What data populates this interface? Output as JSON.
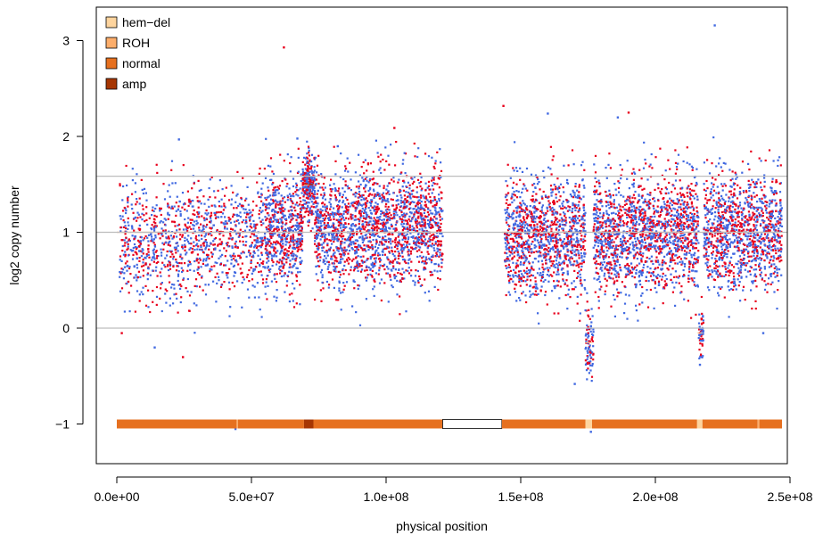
{
  "chart_data": {
    "type": "scatter",
    "xlabel": "physical position",
    "ylabel": "log2 copy number",
    "xlim": [
      0,
      250000000
    ],
    "ylim": [
      -1.2,
      3.3
    ],
    "x_ticks": [
      {
        "value": 0,
        "label": "0.0e+00"
      },
      {
        "value": 50000000,
        "label": "5.0e+07"
      },
      {
        "value": 100000000,
        "label": "1.0e+08"
      },
      {
        "value": 150000000,
        "label": "1.5e+08"
      },
      {
        "value": 200000000,
        "label": "2.0e+08"
      },
      {
        "value": 250000000,
        "label": "2.5e+08"
      }
    ],
    "y_ticks": [
      {
        "value": -1,
        "label": "−1"
      },
      {
        "value": 0,
        "label": "0"
      },
      {
        "value": 1,
        "label": "1"
      },
      {
        "value": 2,
        "label": "2"
      },
      {
        "value": 3,
        "label": "3"
      }
    ],
    "reference_lines": [
      0,
      1,
      1.585
    ],
    "legend": {
      "placement": "top-left",
      "items": [
        {
          "label": "hem−del",
          "color": "#FDD49E"
        },
        {
          "label": "ROH",
          "color": "#FDAE6B"
        },
        {
          "label": "normal",
          "color": "#E6701F"
        },
        {
          "label": "amp",
          "color": "#A63603"
        }
      ]
    },
    "series": [
      {
        "color": "#4169E1"
      },
      {
        "color": "#E8001C"
      }
    ],
    "point_regions": [
      {
        "start": 1000000,
        "end": 12000000,
        "mean": 0.9,
        "sd": 0.3,
        "n": 230
      },
      {
        "start": 12000000,
        "end": 28000000,
        "mean": 0.85,
        "sd": 0.32,
        "n": 320
      },
      {
        "start": 28000000,
        "end": 55000000,
        "mean": 0.95,
        "sd": 0.3,
        "n": 560
      },
      {
        "start": 55000000,
        "end": 69000000,
        "mean": 1.0,
        "sd": 0.3,
        "n": 620
      },
      {
        "start": 69000000,
        "end": 73500000,
        "mean": 1.5,
        "sd": 0.18,
        "n": 240
      },
      {
        "start": 73500000,
        "end": 121000000,
        "mean": 1.05,
        "sd": 0.3,
        "n": 1900
      },
      {
        "start": 144000000,
        "end": 174000000,
        "mean": 0.95,
        "sd": 0.3,
        "n": 1200
      },
      {
        "start": 174000000,
        "end": 177000000,
        "mean": -0.15,
        "sd": 0.2,
        "n": 90
      },
      {
        "start": 177000000,
        "end": 216000000,
        "mean": 0.98,
        "sd": 0.3,
        "n": 1600
      },
      {
        "start": 216000000,
        "end": 218000000,
        "mean": -0.05,
        "sd": 0.12,
        "n": 50
      },
      {
        "start": 218000000,
        "end": 247000000,
        "mean": 1.0,
        "sd": 0.3,
        "n": 1150
      }
    ],
    "outliers": [
      {
        "x": 62000000,
        "y": 2.93,
        "s": 1
      },
      {
        "x": 222000000,
        "y": 3.16,
        "s": 0
      },
      {
        "x": 143500000,
        "y": 2.32,
        "s": 1
      },
      {
        "x": 44000000,
        "y": -1.05,
        "s": 0
      },
      {
        "x": 176000000,
        "y": -1.08,
        "s": 0
      },
      {
        "x": 24500000,
        "y": -0.3,
        "s": 1
      },
      {
        "x": 1800000,
        "y": -0.05,
        "s": 1
      },
      {
        "x": 14000000,
        "y": -0.2,
        "s": 0
      },
      {
        "x": 103000000,
        "y": 2.09,
        "s": 1
      },
      {
        "x": 190000000,
        "y": 2.25,
        "s": 1
      },
      {
        "x": 160000000,
        "y": 2.24,
        "s": 0
      },
      {
        "x": 186000000,
        "y": 2.2,
        "s": 0
      },
      {
        "x": 67000000,
        "y": 1.98,
        "s": 0
      },
      {
        "x": 23000000,
        "y": 1.97,
        "s": 0
      },
      {
        "x": 82000000,
        "y": 1.9,
        "s": 0
      },
      {
        "x": 170000000,
        "y": -0.58,
        "s": 0
      },
      {
        "x": 216500000,
        "y": -0.38,
        "s": 0
      },
      {
        "x": 240000000,
        "y": -0.05,
        "s": 0
      }
    ],
    "segments": [
      {
        "start": 0,
        "end": 44500000,
        "state": "normal",
        "value": 1.0
      },
      {
        "start": 44500000,
        "end": 45000000,
        "state": "ROH",
        "value": 1.0
      },
      {
        "start": 45000000,
        "end": 69500000,
        "state": "normal",
        "value": 1.0
      },
      {
        "start": 69500000,
        "end": 73000000,
        "state": "amp",
        "value": 1.5
      },
      {
        "start": 73000000,
        "end": 121000000,
        "state": "normal",
        "value": 1.0
      },
      {
        "start": 121000000,
        "end": 143000000,
        "state": "gap",
        "value": null
      },
      {
        "start": 143000000,
        "end": 174000000,
        "state": "normal",
        "value": 1.0
      },
      {
        "start": 174000000,
        "end": 176500000,
        "state": "hem-del",
        "value": -0.15
      },
      {
        "start": 176500000,
        "end": 215500000,
        "state": "normal",
        "value": 1.0
      },
      {
        "start": 215500000,
        "end": 217500000,
        "state": "hem-del",
        "value": -0.05
      },
      {
        "start": 217500000,
        "end": 238000000,
        "state": "normal",
        "value": 1.0
      },
      {
        "start": 238000000,
        "end": 238600000,
        "state": "ROH",
        "value": 1.0
      },
      {
        "start": 238600000,
        "end": 247000000,
        "state": "normal",
        "value": 1.0
      }
    ],
    "state_colors": {
      "hem-del": "#FDD49E",
      "ROH": "#FDAE6B",
      "normal": "#E6701F",
      "amp": "#A63603"
    }
  }
}
